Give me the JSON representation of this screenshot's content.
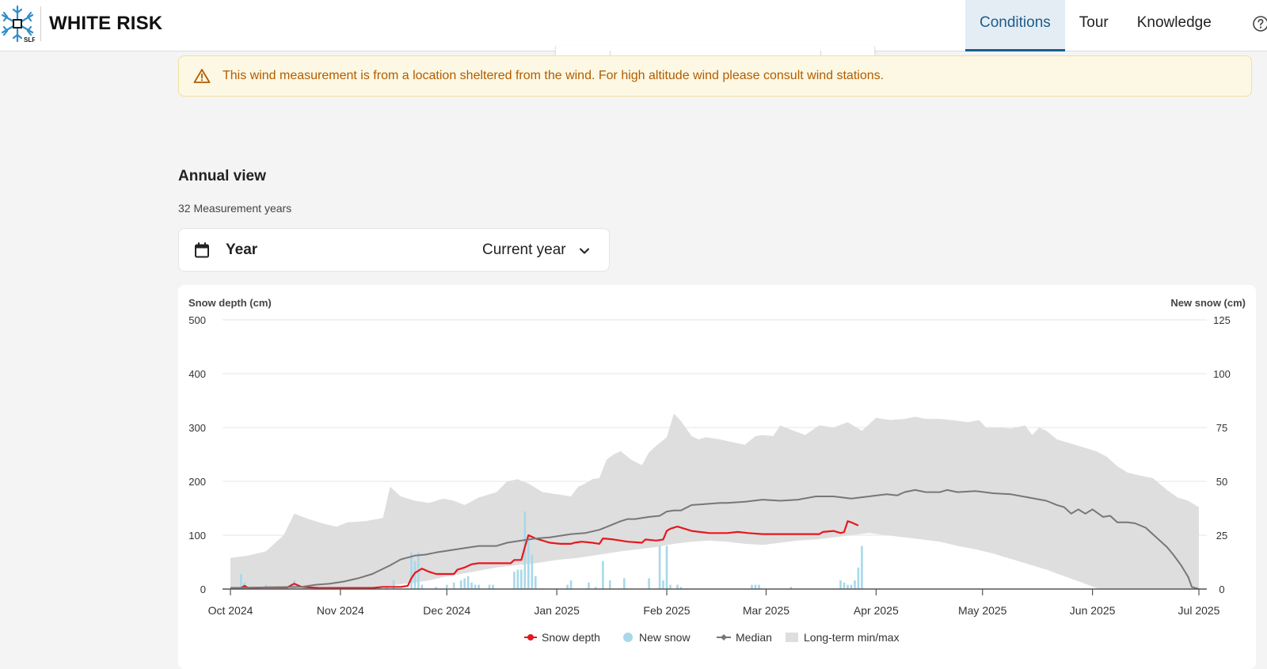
{
  "header": {
    "app_title": "WHITE RISK",
    "logo_label": "SLF",
    "nav": [
      {
        "label": "Conditions",
        "active": true
      },
      {
        "label": "Tour",
        "active": false
      },
      {
        "label": "Knowledge",
        "active": false
      }
    ],
    "help_icon": "help-circle-icon"
  },
  "warning": {
    "icon": "warning-triangle-icon",
    "text": "This wind measurement is from a location sheltered from the wind. For high altitude wind please consult wind stations."
  },
  "annual_view": {
    "title": "Annual view",
    "subtitle": "32 Measurement years",
    "year_selector": {
      "icon": "calendar-icon",
      "label": "Year",
      "value": "Current year"
    }
  },
  "colors": {
    "snow_depth": "#e8171f",
    "new_snow": "#a8d8ea",
    "median": "#777777",
    "minmax": "#dedede",
    "accent": "#1d5d8a"
  },
  "chart_data": {
    "type": "line",
    "left_axis_label": "Snow depth (cm)",
    "right_axis_label": "New snow (cm)",
    "left_ticks": [
      0,
      100,
      200,
      300,
      400,
      500
    ],
    "right_ticks": [
      0,
      25,
      50,
      75,
      100,
      125
    ],
    "ylim_left": [
      0,
      500
    ],
    "ylim_right": [
      0,
      125
    ],
    "x_range_days": [
      0,
      273
    ],
    "x_ticks": [
      {
        "day": 0,
        "label": "Oct 2024"
      },
      {
        "day": 31,
        "label": "Nov 2024"
      },
      {
        "day": 61,
        "label": "Dec 2024"
      },
      {
        "day": 92,
        "label": "Jan 2025"
      },
      {
        "day": 123,
        "label": "Feb 2025"
      },
      {
        "day": 151,
        "label": "Mar 2025"
      },
      {
        "day": 182,
        "label": "Apr 2025"
      },
      {
        "day": 212,
        "label": "May 2025"
      },
      {
        "day": 243,
        "label": "Jun 2025"
      },
      {
        "day": 273,
        "label": "Jul 2025"
      }
    ],
    "legend": [
      {
        "label": "Snow depth",
        "kind": "line-dot"
      },
      {
        "label": "New snow",
        "kind": "dot"
      },
      {
        "label": "Median",
        "kind": "line-diamond"
      },
      {
        "label": "Long-term min/max",
        "kind": "area"
      }
    ],
    "series": [
      {
        "name": "Snow depth",
        "points": [
          [
            0,
            2
          ],
          [
            3,
            2
          ],
          [
            4,
            6
          ],
          [
            5,
            2
          ],
          [
            10,
            3
          ],
          [
            16,
            3
          ],
          [
            18,
            10
          ],
          [
            20,
            4
          ],
          [
            25,
            2
          ],
          [
            40,
            2
          ],
          [
            43,
            4
          ],
          [
            48,
            4
          ],
          [
            50,
            6
          ],
          [
            51,
            20
          ],
          [
            52,
            30
          ],
          [
            54,
            38
          ],
          [
            56,
            32
          ],
          [
            58,
            28
          ],
          [
            60,
            28
          ],
          [
            63,
            28
          ],
          [
            64,
            36
          ],
          [
            66,
            40
          ],
          [
            68,
            46
          ],
          [
            70,
            48
          ],
          [
            74,
            48
          ],
          [
            79,
            48
          ],
          [
            80,
            54
          ],
          [
            82,
            54
          ],
          [
            83,
            78
          ],
          [
            84,
            100
          ],
          [
            86,
            94
          ],
          [
            90,
            86
          ],
          [
            93,
            84
          ],
          [
            96,
            84
          ],
          [
            97,
            86
          ],
          [
            99,
            88
          ],
          [
            102,
            86
          ],
          [
            104,
            84
          ],
          [
            105,
            94
          ],
          [
            108,
            92
          ],
          [
            112,
            88
          ],
          [
            116,
            86
          ],
          [
            117,
            92
          ],
          [
            120,
            90
          ],
          [
            122,
            92
          ],
          [
            123,
            108
          ],
          [
            124,
            112
          ],
          [
            126,
            116
          ],
          [
            128,
            112
          ],
          [
            130,
            108
          ],
          [
            135,
            104
          ],
          [
            140,
            104
          ],
          [
            143,
            106
          ],
          [
            146,
            104
          ],
          [
            150,
            102
          ],
          [
            160,
            102
          ],
          [
            166,
            102
          ],
          [
            167,
            106
          ],
          [
            170,
            108
          ],
          [
            172,
            104
          ],
          [
            173,
            106
          ],
          [
            174,
            126
          ],
          [
            175,
            124
          ],
          [
            177,
            118
          ]
        ]
      },
      {
        "name": "Median",
        "points": [
          [
            0,
            2
          ],
          [
            20,
            4
          ],
          [
            24,
            8
          ],
          [
            28,
            10
          ],
          [
            32,
            14
          ],
          [
            36,
            20
          ],
          [
            40,
            28
          ],
          [
            45,
            44
          ],
          [
            48,
            55
          ],
          [
            52,
            62
          ],
          [
            55,
            64
          ],
          [
            58,
            68
          ],
          [
            62,
            72
          ],
          [
            66,
            76
          ],
          [
            70,
            80
          ],
          [
            75,
            80
          ],
          [
            78,
            86
          ],
          [
            82,
            90
          ],
          [
            86,
            94
          ],
          [
            90,
            96
          ],
          [
            96,
            102
          ],
          [
            100,
            104
          ],
          [
            104,
            110
          ],
          [
            107,
            118
          ],
          [
            110,
            126
          ],
          [
            112,
            130
          ],
          [
            114,
            130
          ],
          [
            116,
            132
          ],
          [
            118,
            134
          ],
          [
            121,
            136
          ],
          [
            123,
            144
          ],
          [
            125,
            146
          ],
          [
            127,
            146
          ],
          [
            130,
            156
          ],
          [
            134,
            158
          ],
          [
            138,
            160
          ],
          [
            140,
            160
          ],
          [
            145,
            162
          ],
          [
            150,
            166
          ],
          [
            155,
            164
          ],
          [
            160,
            166
          ],
          [
            165,
            172
          ],
          [
            170,
            172
          ],
          [
            175,
            168
          ],
          [
            180,
            172
          ],
          [
            185,
            176
          ],
          [
            188,
            174
          ],
          [
            190,
            180
          ],
          [
            193,
            184
          ],
          [
            196,
            180
          ],
          [
            200,
            180
          ],
          [
            202,
            184
          ],
          [
            205,
            180
          ],
          [
            210,
            182
          ],
          [
            215,
            178
          ],
          [
            220,
            176
          ],
          [
            225,
            170
          ],
          [
            230,
            164
          ],
          [
            233,
            156
          ],
          [
            235,
            152
          ],
          [
            237,
            140
          ],
          [
            239,
            148
          ],
          [
            241,
            140
          ],
          [
            243,
            148
          ],
          [
            246,
            134
          ],
          [
            248,
            136
          ],
          [
            250,
            124
          ],
          [
            253,
            124
          ],
          [
            255,
            122
          ],
          [
            258,
            114
          ],
          [
            261,
            96
          ],
          [
            264,
            78
          ],
          [
            266,
            62
          ],
          [
            268,
            44
          ],
          [
            270,
            22
          ],
          [
            271,
            4
          ],
          [
            273,
            0
          ]
        ]
      }
    ],
    "minmax": {
      "upper": [
        [
          0,
          58
        ],
        [
          5,
          62
        ],
        [
          10,
          70
        ],
        [
          15,
          100
        ],
        [
          18,
          140
        ],
        [
          22,
          130
        ],
        [
          27,
          120
        ],
        [
          30,
          116
        ],
        [
          33,
          124
        ],
        [
          38,
          126
        ],
        [
          43,
          132
        ],
        [
          45,
          190
        ],
        [
          48,
          172
        ],
        [
          52,
          164
        ],
        [
          56,
          160
        ],
        [
          60,
          168
        ],
        [
          63,
          164
        ],
        [
          66,
          156
        ],
        [
          70,
          170
        ],
        [
          75,
          180
        ],
        [
          78,
          200
        ],
        [
          81,
          204
        ],
        [
          84,
          196
        ],
        [
          88,
          180
        ],
        [
          92,
          176
        ],
        [
          96,
          172
        ],
        [
          98,
          190
        ],
        [
          100,
          196
        ],
        [
          102,
          204
        ],
        [
          104,
          206
        ],
        [
          106,
          240
        ],
        [
          108,
          250
        ],
        [
          110,
          256
        ],
        [
          113,
          240
        ],
        [
          116,
          230
        ],
        [
          118,
          254
        ],
        [
          120,
          266
        ],
        [
          123,
          282
        ],
        [
          125,
          326
        ],
        [
          127,
          312
        ],
        [
          130,
          284
        ],
        [
          132,
          278
        ],
        [
          134,
          282
        ],
        [
          138,
          278
        ],
        [
          142,
          272
        ],
        [
          145,
          268
        ],
        [
          148,
          284
        ],
        [
          150,
          286
        ],
        [
          153,
          284
        ],
        [
          155,
          304
        ],
        [
          158,
          296
        ],
        [
          162,
          286
        ],
        [
          166,
          304
        ],
        [
          170,
          300
        ],
        [
          174,
          310
        ],
        [
          178,
          294
        ],
        [
          182,
          318
        ],
        [
          186,
          314
        ],
        [
          190,
          316
        ],
        [
          193,
          320
        ],
        [
          196,
          316
        ],
        [
          200,
          316
        ],
        [
          203,
          314
        ],
        [
          208,
          310
        ],
        [
          211,
          314
        ],
        [
          213,
          300
        ],
        [
          217,
          300
        ],
        [
          220,
          298
        ],
        [
          224,
          304
        ],
        [
          226,
          286
        ],
        [
          228,
          300
        ],
        [
          230,
          294
        ],
        [
          233,
          278
        ],
        [
          236,
          272
        ],
        [
          238,
          268
        ],
        [
          241,
          262
        ],
        [
          244,
          256
        ],
        [
          247,
          246
        ],
        [
          250,
          228
        ],
        [
          253,
          216
        ],
        [
          257,
          210
        ],
        [
          260,
          206
        ],
        [
          264,
          184
        ],
        [
          267,
          170
        ],
        [
          270,
          164
        ],
        [
          273,
          152
        ]
      ],
      "lower": [
        [
          0,
          0
        ],
        [
          40,
          0
        ],
        [
          47,
          8
        ],
        [
          52,
          12
        ],
        [
          56,
          16
        ],
        [
          60,
          22
        ],
        [
          65,
          28
        ],
        [
          70,
          34
        ],
        [
          75,
          40
        ],
        [
          80,
          44
        ],
        [
          86,
          48
        ],
        [
          92,
          54
        ],
        [
          98,
          58
        ],
        [
          104,
          64
        ],
        [
          110,
          70
        ],
        [
          115,
          74
        ],
        [
          120,
          78
        ],
        [
          125,
          84
        ],
        [
          130,
          88
        ],
        [
          135,
          90
        ],
        [
          140,
          88
        ],
        [
          145,
          84
        ],
        [
          150,
          82
        ],
        [
          155,
          86
        ],
        [
          160,
          90
        ],
        [
          165,
          92
        ],
        [
          170,
          96
        ],
        [
          175,
          100
        ],
        [
          180,
          104
        ],
        [
          185,
          100
        ],
        [
          190,
          96
        ],
        [
          195,
          92
        ],
        [
          200,
          88
        ],
        [
          205,
          80
        ],
        [
          210,
          74
        ],
        [
          215,
          66
        ],
        [
          220,
          56
        ],
        [
          225,
          46
        ],
        [
          230,
          36
        ],
        [
          235,
          24
        ],
        [
          240,
          12
        ],
        [
          244,
          2
        ],
        [
          246,
          0
        ],
        [
          273,
          0
        ]
      ]
    },
    "new_snow": [
      [
        3,
        7
      ],
      [
        4,
        3
      ],
      [
        10,
        2
      ],
      [
        18,
        4
      ],
      [
        40,
        1
      ],
      [
        42,
        1
      ],
      [
        44,
        1
      ],
      [
        46,
        4
      ],
      [
        51,
        17
      ],
      [
        52,
        13
      ],
      [
        53,
        17
      ],
      [
        54,
        2
      ],
      [
        58,
        1
      ],
      [
        61,
        2
      ],
      [
        63,
        3
      ],
      [
        65,
        4
      ],
      [
        66,
        5
      ],
      [
        67,
        6
      ],
      [
        68,
        3
      ],
      [
        69,
        2
      ],
      [
        70,
        2
      ],
      [
        73,
        2
      ],
      [
        74,
        2
      ],
      [
        80,
        8
      ],
      [
        81,
        9
      ],
      [
        82,
        9
      ],
      [
        83,
        36
      ],
      [
        84,
        25
      ],
      [
        85,
        16
      ],
      [
        86,
        6
      ],
      [
        95,
        2
      ],
      [
        96,
        4
      ],
      [
        101,
        3
      ],
      [
        103,
        1
      ],
      [
        105,
        13
      ],
      [
        107,
        4
      ],
      [
        111,
        5
      ],
      [
        118,
        5
      ],
      [
        121,
        20
      ],
      [
        122,
        4
      ],
      [
        123,
        20
      ],
      [
        124,
        2
      ],
      [
        126,
        2
      ],
      [
        127,
        1
      ],
      [
        147,
        2
      ],
      [
        148,
        2
      ],
      [
        149,
        2
      ],
      [
        158,
        1
      ],
      [
        172,
        4
      ],
      [
        173,
        3
      ],
      [
        174,
        2
      ],
      [
        175,
        2
      ],
      [
        176,
        4
      ],
      [
        177,
        10
      ],
      [
        178,
        20
      ]
    ]
  }
}
